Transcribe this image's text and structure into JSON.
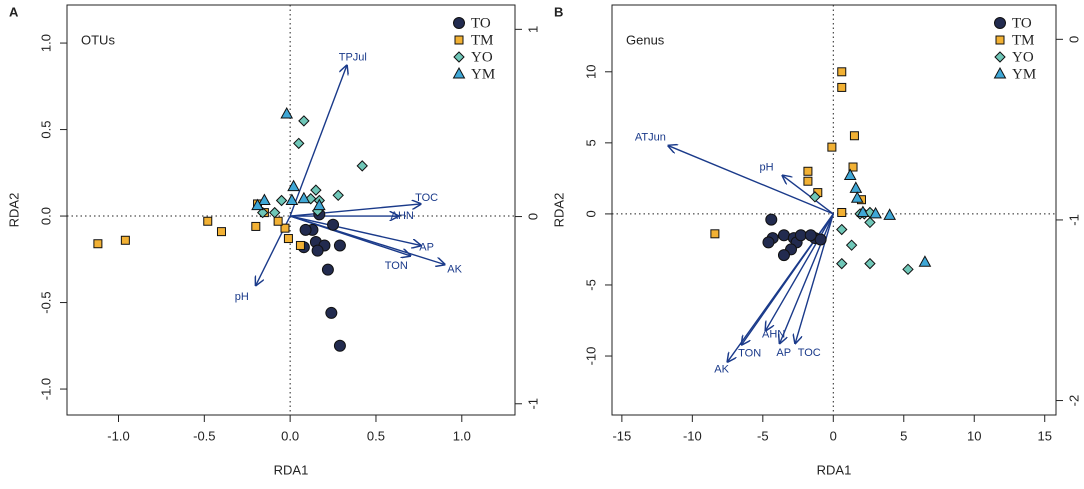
{
  "chart_data": [
    {
      "type": "scatter",
      "panel": "A",
      "title": "OTUs",
      "xlabel": "RDA1",
      "ylabel": "RDA2",
      "xlim": [
        -1.3,
        1.31
      ],
      "ylim": [
        -1.15,
        1.22
      ],
      "y2lim": [
        -1.06,
        1.13
      ],
      "xticks": [
        {
          "value": -1,
          "label": "-1.0"
        },
        -0.5,
        {
          "value": 0,
          "label": "0.0"
        },
        0.5,
        {
          "value": 1,
          "label": "1.0"
        }
      ],
      "yticks": [
        {
          "value": -1,
          "label": "-1.0"
        },
        -0.5,
        {
          "value": 0,
          "label": "0.0"
        },
        0.5,
        {
          "value": 1,
          "label": "1.0"
        }
      ],
      "y2ticks": [
        -1,
        0,
        1
      ],
      "legend": "topright",
      "arrow_color": "#1a3a8a",
      "series": [
        {
          "name": "TO",
          "marker": "circle",
          "color": "#222b4f",
          "x": [
            0.08,
            0.15,
            0.2,
            0.29,
            0.13,
            0.17,
            0.25,
            0.22,
            0.24,
            0.29,
            0.16,
            0.09
          ],
          "values": [
            -0.18,
            -0.15,
            -0.17,
            -0.17,
            -0.08,
            0.01,
            -0.05,
            -0.31,
            -0.56,
            -0.75,
            -0.2,
            -0.08
          ]
        },
        {
          "name": "TM",
          "marker": "square",
          "color": "#f2b134",
          "x": [
            -1.12,
            -0.96,
            -0.48,
            -0.4,
            -0.2,
            -0.19,
            -0.15,
            -0.03,
            -0.01,
            -0.07,
            0.06
          ],
          "values": [
            -0.16,
            -0.14,
            -0.03,
            -0.09,
            -0.06,
            0.07,
            0.02,
            -0.07,
            -0.13,
            -0.03,
            -0.17
          ]
        },
        {
          "name": "YO",
          "marker": "diamond",
          "color": "#6fc7b8",
          "x": [
            0.08,
            0.05,
            0.42,
            0.28,
            0.15,
            0.17,
            -0.09,
            -0.16,
            0.12,
            0.16,
            -0.05
          ],
          "values": [
            0.55,
            0.42,
            0.29,
            0.12,
            0.15,
            0.09,
            0.02,
            0.02,
            0.1,
            0.03,
            0.09
          ]
        },
        {
          "name": "YM",
          "marker": "triangle",
          "color": "#3fa7d6",
          "x": [
            -0.02,
            0.02,
            -0.15,
            -0.19,
            0.01,
            0.17,
            0.08
          ],
          "values": [
            0.59,
            0.17,
            0.09,
            0.06,
            0.09,
            0.06,
            0.1
          ]
        }
      ],
      "arrows": [
        {
          "label": "TPJul",
          "x": 0.33,
          "y": 0.87
        },
        {
          "label": "TOC",
          "x": 0.76,
          "y": 0.07
        },
        {
          "label": "AHN",
          "x": 0.63,
          "y": 0.0
        },
        {
          "label": "AP",
          "x": 0.76,
          "y": -0.17
        },
        {
          "label": "TON",
          "x": 0.7,
          "y": -0.23
        },
        {
          "label": "AK",
          "x": 0.9,
          "y": -0.28
        },
        {
          "label": "pH",
          "x": -0.2,
          "y": -0.4
        }
      ]
    },
    {
      "type": "scatter",
      "panel": "B",
      "title": "Genus",
      "xlabel": "RDA1",
      "ylabel": "RDA2",
      "xlim": [
        -15.7,
        15.8
      ],
      "ylim": [
        -14.15,
        14.7
      ],
      "y2lim": [
        -2.08,
        0.19
      ],
      "xticks": [
        -15,
        -10,
        -5,
        0,
        5,
        10,
        15
      ],
      "yticks": [
        -10,
        -5,
        0,
        5,
        10
      ],
      "y2ticks": [
        -2,
        -1,
        0
      ],
      "legend": "topright",
      "arrow_color": "#1a3a8a",
      "series": [
        {
          "name": "TO",
          "marker": "circle",
          "color": "#222b4f",
          "x": [
            -4.4,
            -4.3,
            -4.6,
            -3.5,
            -2.8,
            -2.6,
            -3.0,
            -3.5,
            -2.3,
            -1.3,
            -0.9,
            -1.6
          ],
          "values": [
            -0.4,
            -1.7,
            -2.0,
            -1.5,
            -1.7,
            -2.0,
            -2.5,
            -2.9,
            -1.5,
            -1.7,
            -1.8,
            -1.5
          ]
        },
        {
          "name": "TM",
          "marker": "square",
          "color": "#f2b134",
          "x": [
            0.6,
            0.6,
            -0.1,
            1.5,
            1.4,
            -1.8,
            -1.8,
            -1.1,
            0.6,
            -8.4,
            2.0
          ],
          "values": [
            10.0,
            8.9,
            4.7,
            5.5,
            3.3,
            3.0,
            2.3,
            1.5,
            0.1,
            -1.4,
            1.0
          ]
        },
        {
          "name": "YO",
          "marker": "diamond",
          "color": "#6fc7b8",
          "x": [
            5.3,
            2.6,
            0.6,
            1.3,
            0.6,
            2.2,
            2.6,
            1.9,
            2.6,
            -1.3
          ],
          "values": [
            -3.9,
            -3.5,
            -3.5,
            -2.2,
            -1.1,
            0.0,
            -0.6,
            0.0,
            0.1,
            1.2
          ]
        },
        {
          "name": "YM",
          "marker": "triangle",
          "color": "#3fa7d6",
          "x": [
            6.5,
            4.0,
            3.0,
            1.2,
            1.6,
            1.7,
            2.1
          ],
          "values": [
            -3.4,
            -0.1,
            0.0,
            2.7,
            1.8,
            1.1,
            0.1
          ]
        }
      ],
      "arrows": [
        {
          "label": "ATJun",
          "x": -11.7,
          "y": 4.8
        },
        {
          "label": "pH",
          "x": -3.6,
          "y": 2.7
        },
        {
          "label": "AK",
          "x": -7.5,
          "y": -10.4
        },
        {
          "label": "TON",
          "x": -6.5,
          "y": -9.2
        },
        {
          "label": "AHN",
          "x": -4.8,
          "y": -8.2
        },
        {
          "label": "AP",
          "x": -3.8,
          "y": -9.1
        },
        {
          "label": "TOC",
          "x": -2.7,
          "y": -9.1
        }
      ]
    }
  ]
}
